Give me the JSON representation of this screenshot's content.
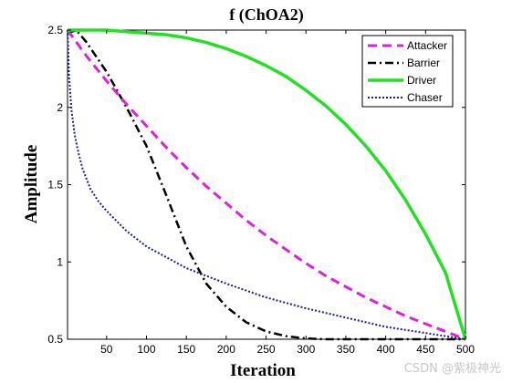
{
  "chart_data": {
    "type": "line",
    "title": "f (ChOA2)",
    "xlabel": "Iteration",
    "ylabel": "Amplitude",
    "xlim": [
      1,
      500
    ],
    "ylim": [
      0.5,
      2.5
    ],
    "xticks": [
      50,
      100,
      150,
      200,
      250,
      300,
      350,
      400,
      450,
      500
    ],
    "yticks": [
      0.5,
      1,
      1.5,
      2,
      2.5
    ],
    "yticklabels": [
      "0.5",
      "1",
      "1.5",
      "2",
      "2.5"
    ],
    "grid": false,
    "legend_position": "top-right",
    "series": [
      {
        "name": "Attacker",
        "color": "#e020e0",
        "style": "dashed",
        "x": [
          1,
          25,
          50,
          75,
          100,
          125,
          150,
          175,
          200,
          225,
          250,
          275,
          300,
          325,
          350,
          375,
          400,
          425,
          450,
          475,
          500
        ],
        "y": [
          2.5,
          2.33,
          2.17,
          2.02,
          1.88,
          1.74,
          1.61,
          1.49,
          1.38,
          1.27,
          1.17,
          1.08,
          0.99,
          0.91,
          0.84,
          0.77,
          0.71,
          0.65,
          0.6,
          0.55,
          0.5
        ]
      },
      {
        "name": "Barrier",
        "color": "#000000",
        "style": "dashdot",
        "x": [
          1,
          12,
          25,
          50,
          75,
          100,
          125,
          150,
          175,
          200,
          225,
          250,
          275,
          300,
          325,
          350,
          400,
          450,
          500
        ],
        "y": [
          2.48,
          2.5,
          2.42,
          2.23,
          2.0,
          1.75,
          1.43,
          1.1,
          0.86,
          0.71,
          0.61,
          0.55,
          0.52,
          0.505,
          0.5,
          0.5,
          0.5,
          0.5,
          0.5
        ]
      },
      {
        "name": "Driver",
        "color": "#22e022",
        "style": "solid",
        "x": [
          1,
          25,
          50,
          75,
          100,
          125,
          150,
          175,
          200,
          225,
          250,
          275,
          300,
          325,
          350,
          375,
          400,
          425,
          450,
          475,
          500
        ],
        "y": [
          2.5,
          2.5,
          2.5,
          2.49,
          2.48,
          2.47,
          2.45,
          2.42,
          2.38,
          2.33,
          2.27,
          2.2,
          2.11,
          2.01,
          1.89,
          1.75,
          1.59,
          1.4,
          1.18,
          0.93,
          0.5
        ]
      },
      {
        "name": "Chaser",
        "color": "#1c1c9a",
        "style": "dotted",
        "x": [
          1,
          3,
          6,
          10,
          15,
          20,
          30,
          40,
          50,
          75,
          100,
          150,
          200,
          250,
          300,
          350,
          400,
          450,
          500
        ],
        "y": [
          2.5,
          2.2,
          1.98,
          1.82,
          1.7,
          1.6,
          1.47,
          1.39,
          1.33,
          1.2,
          1.1,
          0.96,
          0.86,
          0.77,
          0.7,
          0.64,
          0.58,
          0.54,
          0.5
        ]
      }
    ]
  },
  "watermark": "CSDN @紫极神光"
}
